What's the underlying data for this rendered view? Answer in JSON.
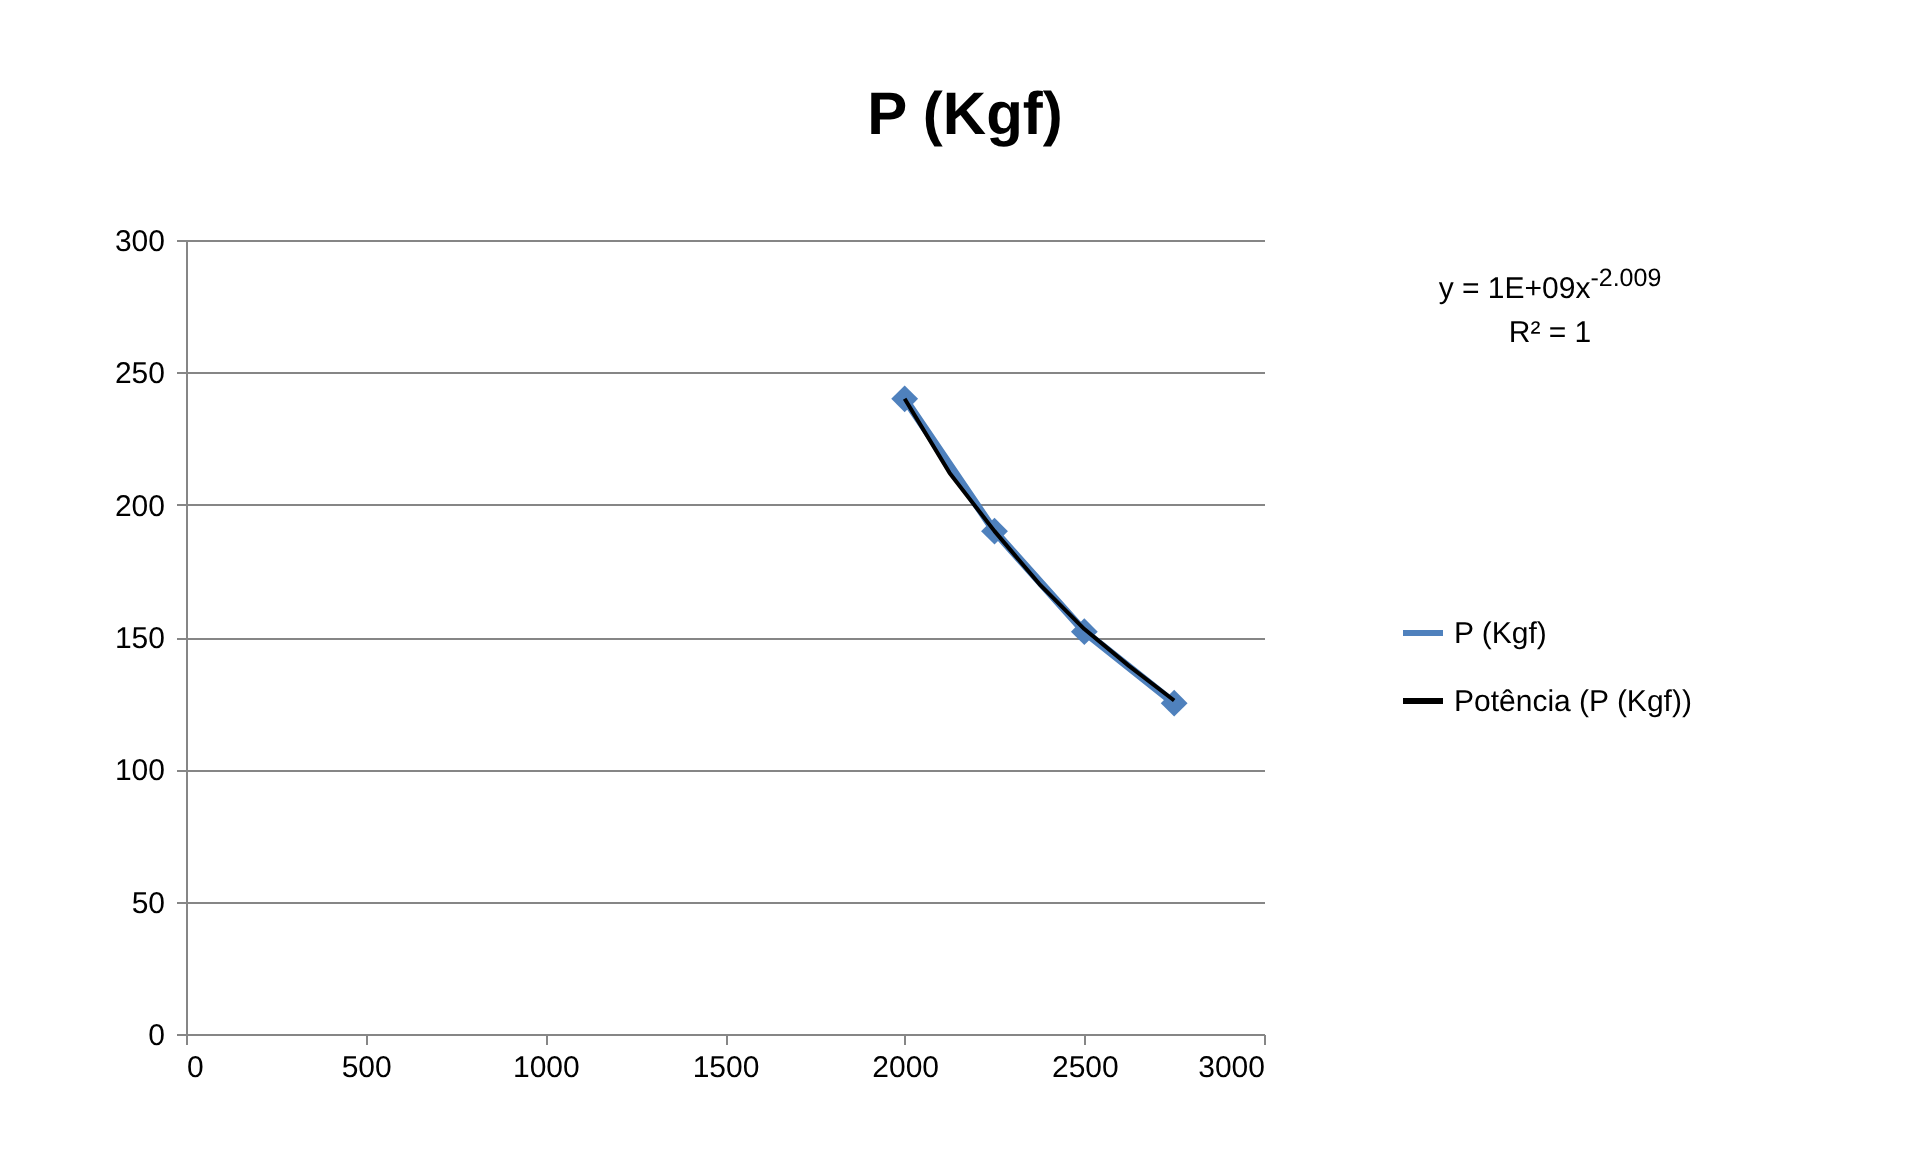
{
  "chart_data": {
    "type": "line",
    "title": "P (Kgf)",
    "xlim": [
      0,
      3000
    ],
    "xticks": [
      0,
      500,
      1000,
      1500,
      2000,
      2500,
      3000
    ],
    "ylim": [
      0,
      300
    ],
    "yticks": [
      0,
      50,
      100,
      150,
      200,
      250,
      300
    ],
    "grid": "y",
    "legend": "right",
    "marker": "diamond",
    "series": [
      {
        "name": "P (Kgf)",
        "color": "#4f81bd",
        "x": [
          2000,
          2250,
          2500,
          2750
        ],
        "values": [
          240,
          190,
          152,
          125
        ]
      },
      {
        "name": "Potência (P (Kgf))",
        "marker": "none",
        "color": "#000000",
        "x": [
          2000,
          2125,
          2250,
          2375,
          2500,
          2625,
          2750
        ],
        "values": [
          240,
          212,
          190,
          170,
          153,
          139,
          126
        ]
      }
    ],
    "annotations": [
      "y = 1E+09x$^{-2.009}$",
      "R² = 1"
    ]
  }
}
